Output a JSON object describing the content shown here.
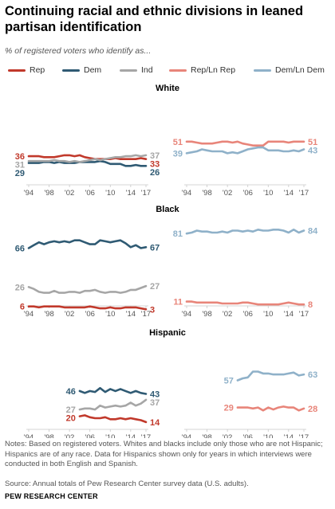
{
  "title": "Continuing racial and ethnic divisions in leaned partisan identification",
  "subtitle": "% of registered voters who identify as...",
  "legend": [
    {
      "name": "Rep",
      "color": "#c1392b"
    },
    {
      "name": "Dem",
      "color": "#2f5a73"
    },
    {
      "name": "Ind",
      "color": "#a6a6a6"
    },
    {
      "name": "Rep/Ln Rep",
      "color": "#e8857a"
    },
    {
      "name": "Dem/Ln Dem",
      "color": "#8fb1c9"
    }
  ],
  "notes": "Notes: Based on registered voters. Whites and blacks include only those who are not Hispanic; Hispanics are of any race. Data for Hispanics shown only for years in which interviews were conducted in both English and Spanish.",
  "source": "Source: Annual totals of Pew Research Center survey data (U.S. adults).",
  "brand": "PEW RESEARCH CENTER",
  "chart_data": [
    {
      "type": "line",
      "group": "White",
      "panel": "left",
      "x_tick_labels": [
        "'94",
        "'98",
        "'02",
        "'06",
        "'10",
        "'14",
        "'17"
      ],
      "ylim": [
        0,
        100
      ],
      "series": [
        {
          "name": "Rep",
          "x": [
            1994,
            1995,
            1996,
            1997,
            1998,
            1999,
            2000,
            2001,
            2002,
            2003,
            2004,
            2005,
            2006,
            2007,
            2008,
            2009,
            2010,
            2011,
            2012,
            2013,
            2014,
            2015,
            2016,
            2017
          ],
          "values": [
            36,
            36,
            36,
            35,
            35,
            35,
            36,
            37,
            37,
            36,
            37,
            35,
            34,
            33,
            33,
            33,
            33,
            34,
            33,
            33,
            33,
            33,
            34,
            33
          ],
          "start_label": "36",
          "end_label": "33"
        },
        {
          "name": "Dem",
          "x": [
            1994,
            1995,
            1996,
            1997,
            1998,
            1999,
            2000,
            2001,
            2002,
            2003,
            2004,
            2005,
            2006,
            2007,
            2008,
            2009,
            2010,
            2011,
            2012,
            2013,
            2014,
            2015,
            2016,
            2017
          ],
          "values": [
            29,
            29,
            29,
            30,
            30,
            29,
            30,
            29,
            29,
            29,
            30,
            30,
            30,
            30,
            31,
            30,
            28,
            28,
            28,
            26,
            26,
            27,
            26,
            26
          ],
          "start_label": "29",
          "end_label": "26"
        },
        {
          "name": "Ind",
          "x": [
            1994,
            1995,
            1996,
            1997,
            1998,
            1999,
            2000,
            2001,
            2002,
            2003,
            2004,
            2005,
            2006,
            2007,
            2008,
            2009,
            2010,
            2011,
            2012,
            2013,
            2014,
            2015,
            2016,
            2017
          ],
          "values": [
            31,
            31,
            31,
            31,
            31,
            32,
            31,
            31,
            30,
            31,
            30,
            31,
            32,
            33,
            32,
            33,
            34,
            35,
            35,
            36,
            36,
            37,
            36,
            37
          ],
          "start_label": "31",
          "end_label": "37"
        }
      ]
    },
    {
      "type": "line",
      "group": "White",
      "panel": "right",
      "x_tick_labels": [
        "'94",
        "'98",
        "'02",
        "'06",
        "'10",
        "'14",
        "'17"
      ],
      "ylim": [
        0,
        100
      ],
      "series": [
        {
          "name": "Rep/Ln Rep",
          "x": [
            1994,
            1995,
            1996,
            1997,
            1998,
            1999,
            2000,
            2001,
            2002,
            2003,
            2004,
            2005,
            2006,
            2007,
            2008,
            2009,
            2010,
            2011,
            2012,
            2013,
            2014,
            2015,
            2016,
            2017
          ],
          "values": [
            51,
            51,
            50,
            49,
            49,
            49,
            50,
            51,
            51,
            50,
            51,
            49,
            48,
            47,
            47,
            47,
            51,
            51,
            51,
            51,
            50,
            51,
            51,
            51
          ],
          "start_label": "51",
          "end_label": "51"
        },
        {
          "name": "Dem/Ln Dem",
          "x": [
            1994,
            1995,
            1996,
            1997,
            1998,
            1999,
            2000,
            2001,
            2002,
            2003,
            2004,
            2005,
            2006,
            2007,
            2008,
            2009,
            2010,
            2011,
            2012,
            2013,
            2014,
            2015,
            2016,
            2017
          ],
          "values": [
            39,
            40,
            41,
            43,
            42,
            41,
            41,
            41,
            39,
            40,
            39,
            41,
            43,
            44,
            45,
            45,
            42,
            42,
            42,
            41,
            41,
            42,
            41,
            43
          ],
          "start_label": "39",
          "end_label": "43"
        }
      ]
    },
    {
      "type": "line",
      "group": "Black",
      "panel": "left",
      "x_tick_labels": [
        "'94",
        "'98",
        "'02",
        "'06",
        "'10",
        "'14",
        "'17"
      ],
      "ylim": [
        0,
        100
      ],
      "series": [
        {
          "name": "Dem",
          "x": [
            1994,
            1995,
            1996,
            1997,
            1998,
            1999,
            2000,
            2001,
            2002,
            2003,
            2004,
            2005,
            2006,
            2007,
            2008,
            2009,
            2010,
            2011,
            2012,
            2013,
            2014,
            2015,
            2016,
            2017
          ],
          "values": [
            66,
            69,
            72,
            70,
            72,
            73,
            72,
            73,
            72,
            74,
            74,
            72,
            70,
            70,
            74,
            73,
            72,
            73,
            74,
            71,
            67,
            69,
            66,
            67
          ],
          "start_label": "66",
          "end_label": "67"
        },
        {
          "name": "Ind",
          "x": [
            1994,
            1995,
            1996,
            1997,
            1998,
            1999,
            2000,
            2001,
            2002,
            2003,
            2004,
            2005,
            2006,
            2007,
            2008,
            2009,
            2010,
            2011,
            2012,
            2013,
            2014,
            2015,
            2016,
            2017
          ],
          "values": [
            26,
            24,
            21,
            20,
            20,
            22,
            20,
            20,
            21,
            21,
            20,
            22,
            22,
            23,
            21,
            20,
            21,
            21,
            20,
            21,
            23,
            23,
            25,
            27
          ],
          "start_label": "26",
          "end_label": "27"
        },
        {
          "name": "Rep",
          "x": [
            1994,
            1995,
            1996,
            1997,
            1998,
            1999,
            2000,
            2001,
            2002,
            2003,
            2004,
            2005,
            2006,
            2007,
            2008,
            2009,
            2010,
            2011,
            2012,
            2013,
            2014,
            2015,
            2016,
            2017
          ],
          "values": [
            6,
            6,
            5,
            6,
            6,
            6,
            6,
            5,
            5,
            5,
            5,
            5,
            6,
            5,
            4,
            4,
            5,
            4,
            4,
            5,
            5,
            5,
            4,
            3
          ],
          "start_label": "6",
          "end_label": "3"
        }
      ]
    },
    {
      "type": "line",
      "group": "Black",
      "panel": "right",
      "x_tick_labels": [
        "'94",
        "'98",
        "'02",
        "'06",
        "'10",
        "'14",
        "'17"
      ],
      "ylim": [
        0,
        100
      ],
      "series": [
        {
          "name": "Dem/Ln Dem",
          "x": [
            1994,
            1995,
            1996,
            1997,
            1998,
            1999,
            2000,
            2001,
            2002,
            2003,
            2004,
            2005,
            2006,
            2007,
            2008,
            2009,
            2010,
            2011,
            2012,
            2013,
            2014,
            2015,
            2016,
            2017
          ],
          "values": [
            81,
            82,
            84,
            83,
            83,
            82,
            82,
            83,
            82,
            84,
            84,
            83,
            84,
            83,
            85,
            84,
            84,
            85,
            85,
            84,
            82,
            85,
            82,
            84
          ],
          "start_label": "81",
          "end_label": "84"
        },
        {
          "name": "Rep/Ln Rep",
          "x": [
            1994,
            1995,
            1996,
            1997,
            1998,
            1999,
            2000,
            2001,
            2002,
            2003,
            2004,
            2005,
            2006,
            2007,
            2008,
            2009,
            2010,
            2011,
            2012,
            2013,
            2014,
            2015,
            2016,
            2017
          ],
          "values": [
            11,
            11,
            10,
            10,
            10,
            10,
            10,
            9,
            9,
            9,
            9,
            10,
            10,
            9,
            8,
            8,
            8,
            8,
            8,
            9,
            10,
            9,
            8,
            8
          ],
          "start_label": "11",
          "end_label": "8"
        }
      ]
    },
    {
      "type": "line",
      "group": "Hispanic",
      "panel": "left",
      "x_tick_labels": [
        "'94",
        "'98",
        "'02",
        "'06",
        "'10",
        "'14",
        "'17"
      ],
      "ylim": [
        0,
        100
      ],
      "series": [
        {
          "name": "Dem",
          "x": [
            2004,
            2005,
            2006,
            2007,
            2008,
            2009,
            2010,
            2011,
            2012,
            2013,
            2014,
            2015,
            2016,
            2017
          ],
          "values": [
            46,
            44,
            46,
            45,
            49,
            45,
            48,
            46,
            48,
            46,
            44,
            46,
            44,
            43
          ],
          "start_label": "46",
          "end_label": "43"
        },
        {
          "name": "Ind",
          "x": [
            2004,
            2005,
            2006,
            2007,
            2008,
            2009,
            2010,
            2011,
            2012,
            2013,
            2014,
            2015,
            2016,
            2017
          ],
          "values": [
            27,
            28,
            28,
            27,
            31,
            29,
            30,
            31,
            30,
            31,
            34,
            31,
            33,
            37
          ],
          "start_label": "27",
          "end_label": "37"
        },
        {
          "name": "Rep",
          "x": [
            2004,
            2005,
            2006,
            2007,
            2008,
            2009,
            2010,
            2011,
            2012,
            2013,
            2014,
            2015,
            2016,
            2017
          ],
          "values": [
            20,
            21,
            19,
            18,
            18,
            19,
            17,
            17,
            18,
            17,
            18,
            17,
            16,
            14
          ],
          "start_label": "20",
          "end_label": "14"
        }
      ]
    },
    {
      "type": "line",
      "group": "Hispanic",
      "panel": "right",
      "x_tick_labels": [
        "'94",
        "'98",
        "'02",
        "'06",
        "'10",
        "'14",
        "'17"
      ],
      "ylim": [
        0,
        100
      ],
      "series": [
        {
          "name": "Dem/Ln Dem",
          "x": [
            2004,
            2005,
            2006,
            2007,
            2008,
            2009,
            2010,
            2011,
            2012,
            2013,
            2014,
            2015,
            2016,
            2017
          ],
          "values": [
            57,
            59,
            60,
            66,
            66,
            64,
            64,
            63,
            63,
            63,
            64,
            65,
            62,
            63
          ],
          "start_label": "57",
          "end_label": "63"
        },
        {
          "name": "Rep/Ln Rep",
          "x": [
            2004,
            2005,
            2006,
            2007,
            2008,
            2009,
            2010,
            2011,
            2012,
            2013,
            2014,
            2015,
            2016,
            2017
          ],
          "values": [
            29,
            29,
            29,
            28,
            29,
            26,
            29,
            27,
            29,
            30,
            29,
            29,
            26,
            28
          ],
          "start_label": "29",
          "end_label": "28"
        }
      ]
    }
  ]
}
